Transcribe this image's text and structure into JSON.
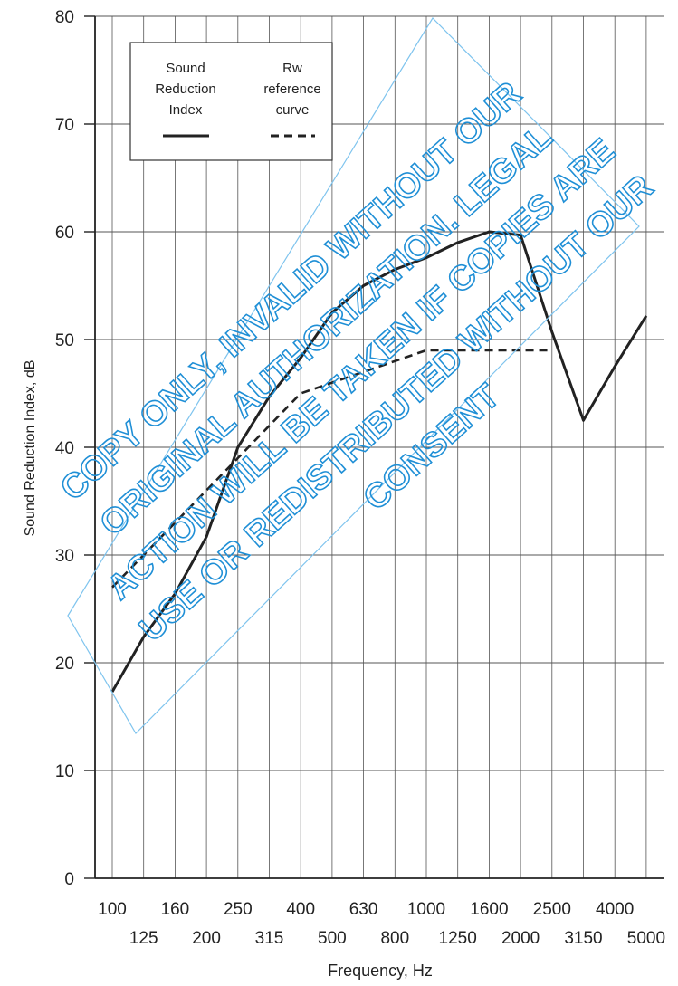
{
  "chart_data": {
    "type": "line",
    "xlabel": "Frequency, Hz",
    "ylabel": "Sound Reduction Index, dB",
    "ylim": [
      0,
      80
    ],
    "y_ticks": [
      "0",
      "10",
      "20",
      "30",
      "40",
      "50",
      "60",
      "70",
      "80"
    ],
    "grid": true,
    "categories": [
      "100",
      "125",
      "160",
      "200",
      "250",
      "315",
      "400",
      "500",
      "630",
      "800",
      "1000",
      "1250",
      "1600",
      "2000",
      "2500",
      "3150",
      "4000",
      "5000"
    ],
    "legend_position": "top-left",
    "legend": [
      {
        "label": "Sound Reduction Index",
        "style": "solid"
      },
      {
        "label": "Rw reference curve",
        "style": "dashed"
      }
    ],
    "series": [
      {
        "name": "Sound Reduction Index",
        "style": "solid",
        "color": "#222222",
        "values": [
          17.3,
          22.4,
          26.4,
          31.7,
          40.0,
          44.7,
          48.3,
          52.5,
          55.0,
          56.5,
          57.6,
          59.0,
          60.0,
          59.7,
          50.7,
          42.5,
          47.5,
          52.2
        ]
      },
      {
        "name": "Rw reference curve",
        "style": "dashed",
        "color": "#222222",
        "values": [
          27.0,
          30.0,
          33.0,
          36.0,
          39.0,
          42.0,
          45.0,
          46.0,
          47.0,
          48.0,
          49.0,
          49.0,
          49.0,
          49.0,
          49.0,
          null,
          null,
          null
        ]
      }
    ]
  },
  "watermark": {
    "text_lines": [
      "COPY ONLY, INVALID WITHOUT OUR",
      "ORIGINAL AUTHORIZATION. LEGAL",
      "ACTION WILL BE TAKEN IF COPIES ARE",
      "USE OR REDISTRIBUTED WITHOUT OUR",
      "CONSENT"
    ],
    "color": "#1f8fd6"
  }
}
